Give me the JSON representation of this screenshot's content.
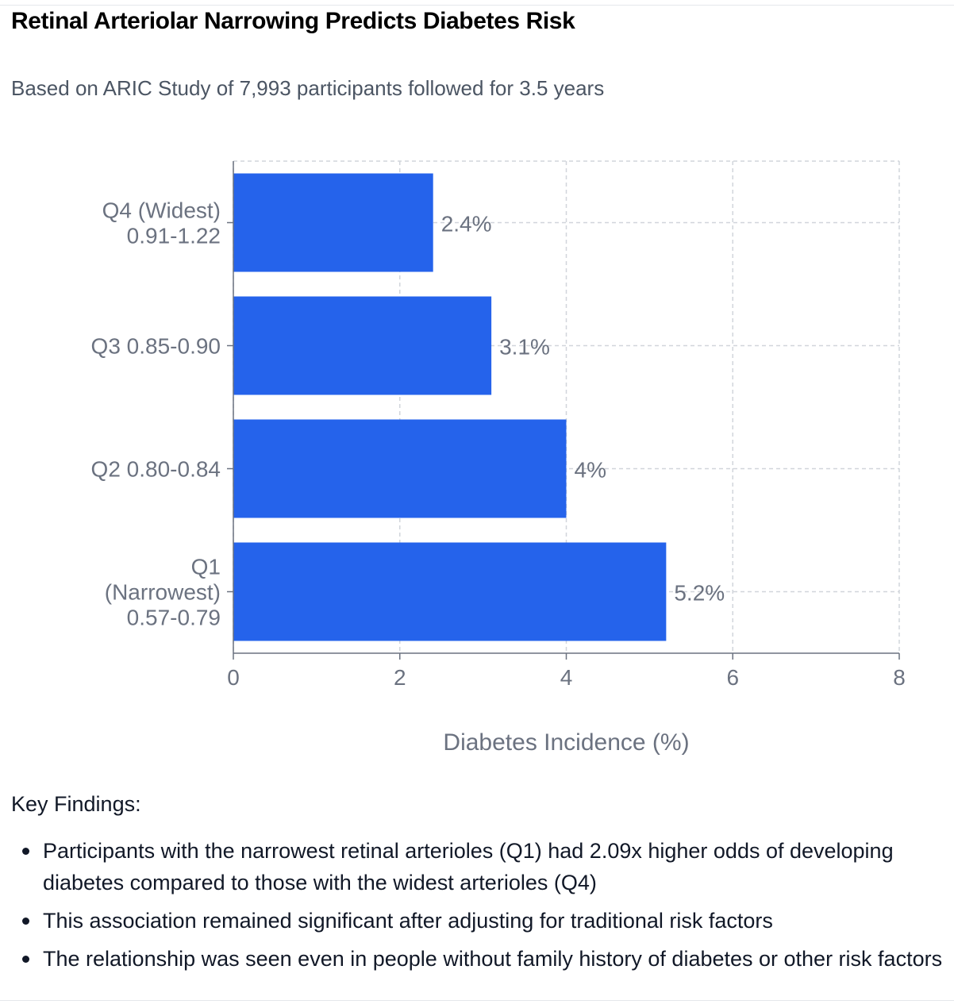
{
  "title": "Retinal Arteriolar Narrowing Predicts Diabetes Risk",
  "subtitle": "Based on ARIC Study of 7,993 participants followed for 3.5 years",
  "colors": {
    "bar": "#2563eb",
    "axis": "#6b7280",
    "grid": "#d1d5db",
    "label": "#6b7280"
  },
  "chart_data": {
    "type": "bar",
    "orientation": "horizontal",
    "categories": [
      [
        "Q4 (Widest)",
        "0.91-1.22"
      ],
      [
        "Q3 0.85-0.90"
      ],
      [
        "Q2 0.80-0.84"
      ],
      [
        "Q1",
        "(Narrowest)",
        "0.57-0.79"
      ]
    ],
    "values": [
      2.4,
      3.1,
      4,
      5.2
    ],
    "data_labels": [
      "2.4%",
      "3.1%",
      "4%",
      "5.2%"
    ],
    "xlabel": "Diabetes Incidence (%)",
    "xlim": [
      0,
      8
    ],
    "xticks": [
      "0",
      "2",
      "4",
      "6",
      "8"
    ],
    "grid": true
  },
  "findings": {
    "heading": "Key Findings:",
    "items": [
      "Participants with the narrowest retinal arterioles (Q1) had 2.09x higher odds of developing diabetes compared to those with the widest arterioles (Q4)",
      "This association remained significant after adjusting for traditional risk factors",
      "The relationship was seen even in people without family history of diabetes or other risk factors"
    ]
  }
}
